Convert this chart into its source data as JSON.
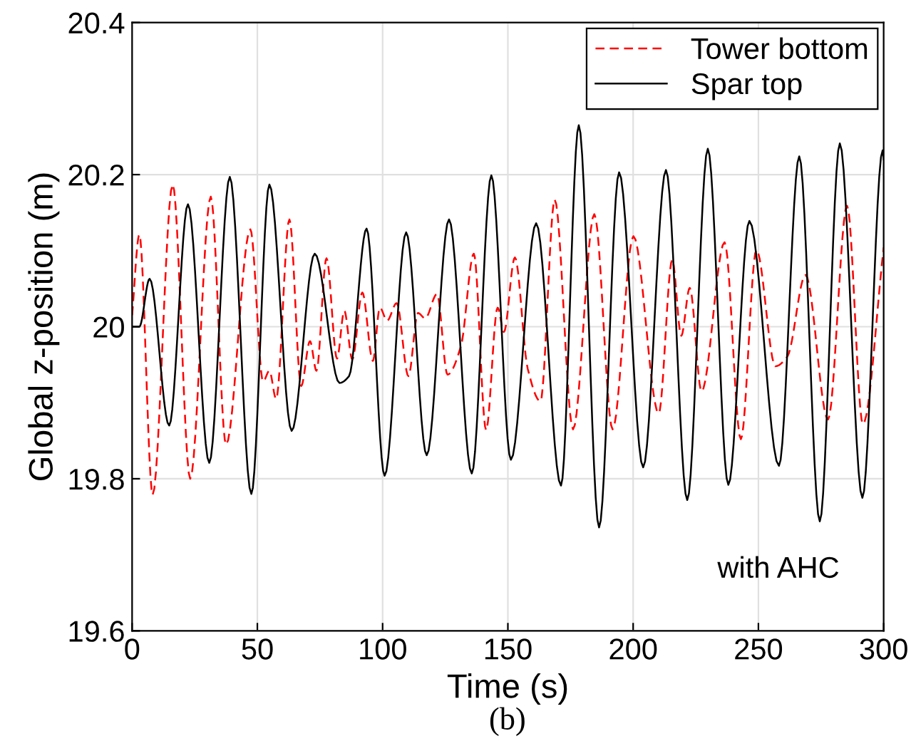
{
  "chart_data": {
    "type": "line",
    "xlabel": "Time (s)",
    "ylabel": "Global z-position (m)",
    "xlim": [
      0,
      300
    ],
    "ylim": [
      19.6,
      20.4
    ],
    "xticks": [
      0,
      50,
      100,
      150,
      200,
      250,
      300
    ],
    "yticks": [
      19.6,
      19.8,
      20,
      20.2,
      20.4
    ],
    "grid": true,
    "legend": "top right",
    "annotations": [
      "with AHC",
      "(b)"
    ],
    "series": [
      {
        "name": "Tower bottom",
        "color": "#ff0000",
        "line_style": "dashed",
        "x": [
          0,
          2.9,
          8.2,
          16.2,
          23.2,
          31.4,
          37.5,
          47.2,
          52.3,
          54.8,
          57.5,
          62.8,
          67.5,
          71.0,
          73.6,
          77.6,
          81.8,
          84.7,
          87.9,
          91.9,
          96.1,
          98.9,
          101.8,
          105.6,
          110.3,
          114.1,
          117.0,
          121.7,
          125.9,
          131.3,
          136.4,
          141.3,
          145.9,
          148.4,
          152.8,
          157.9,
          163.0,
          168.7,
          176.0,
          184.5,
          191.8,
          200.1,
          210.2,
          215.6,
          219.2,
          222.6,
          227.3,
          236.5,
          243.0,
          249.2,
          256.8,
          261.6,
          268.8,
          277.8,
          285.4,
          291.7,
          300
        ],
        "values": [
          20.015,
          20.121,
          19.779,
          20.187,
          19.8,
          20.171,
          19.845,
          20.128,
          19.928,
          19.942,
          19.905,
          20.141,
          19.922,
          19.981,
          19.942,
          20.09,
          19.958,
          20.021,
          19.957,
          20.045,
          19.955,
          20.025,
          20.008,
          20.031,
          19.935,
          20.018,
          20.011,
          20.043,
          19.937,
          19.975,
          20.096,
          19.864,
          20.025,
          19.993,
          20.091,
          19.945,
          19.902,
          20.167,
          19.865,
          20.148,
          19.865,
          20.119,
          19.886,
          20.088,
          19.988,
          20.051,
          19.915,
          20.111,
          19.852,
          20.101,
          19.948,
          19.961,
          20.068,
          19.878,
          20.159,
          19.872,
          20.104
        ]
      },
      {
        "name": "Spar top",
        "color": "#000000",
        "line_style": "solid",
        "x": [
          0,
          2.9,
          7.0,
          14.8,
          22.3,
          30.8,
          39.0,
          47.6,
          54.8,
          63.7,
          72.9,
          82.8,
          86.6,
          93.6,
          100.8,
          109.4,
          117.6,
          126.5,
          135.6,
          143.4,
          151.2,
          161.3,
          171.2,
          178.3,
          186.4,
          194.4,
          204.0,
          213.1,
          221.6,
          229.8,
          238.0,
          246.4,
          258.2,
          266.3,
          274.5,
          282.5,
          291.5,
          299.6,
          300
        ],
        "values": [
          20.0,
          20.0,
          20.063,
          19.87,
          20.161,
          19.821,
          20.197,
          19.78,
          20.187,
          19.863,
          20.096,
          19.926,
          19.935,
          20.129,
          19.804,
          20.124,
          19.831,
          20.141,
          19.807,
          20.199,
          19.825,
          20.136,
          19.791,
          20.265,
          19.736,
          20.203,
          19.815,
          20.206,
          19.772,
          20.234,
          19.792,
          20.139,
          19.817,
          20.224,
          19.744,
          20.241,
          19.775,
          20.232,
          20.22
        ]
      }
    ]
  }
}
